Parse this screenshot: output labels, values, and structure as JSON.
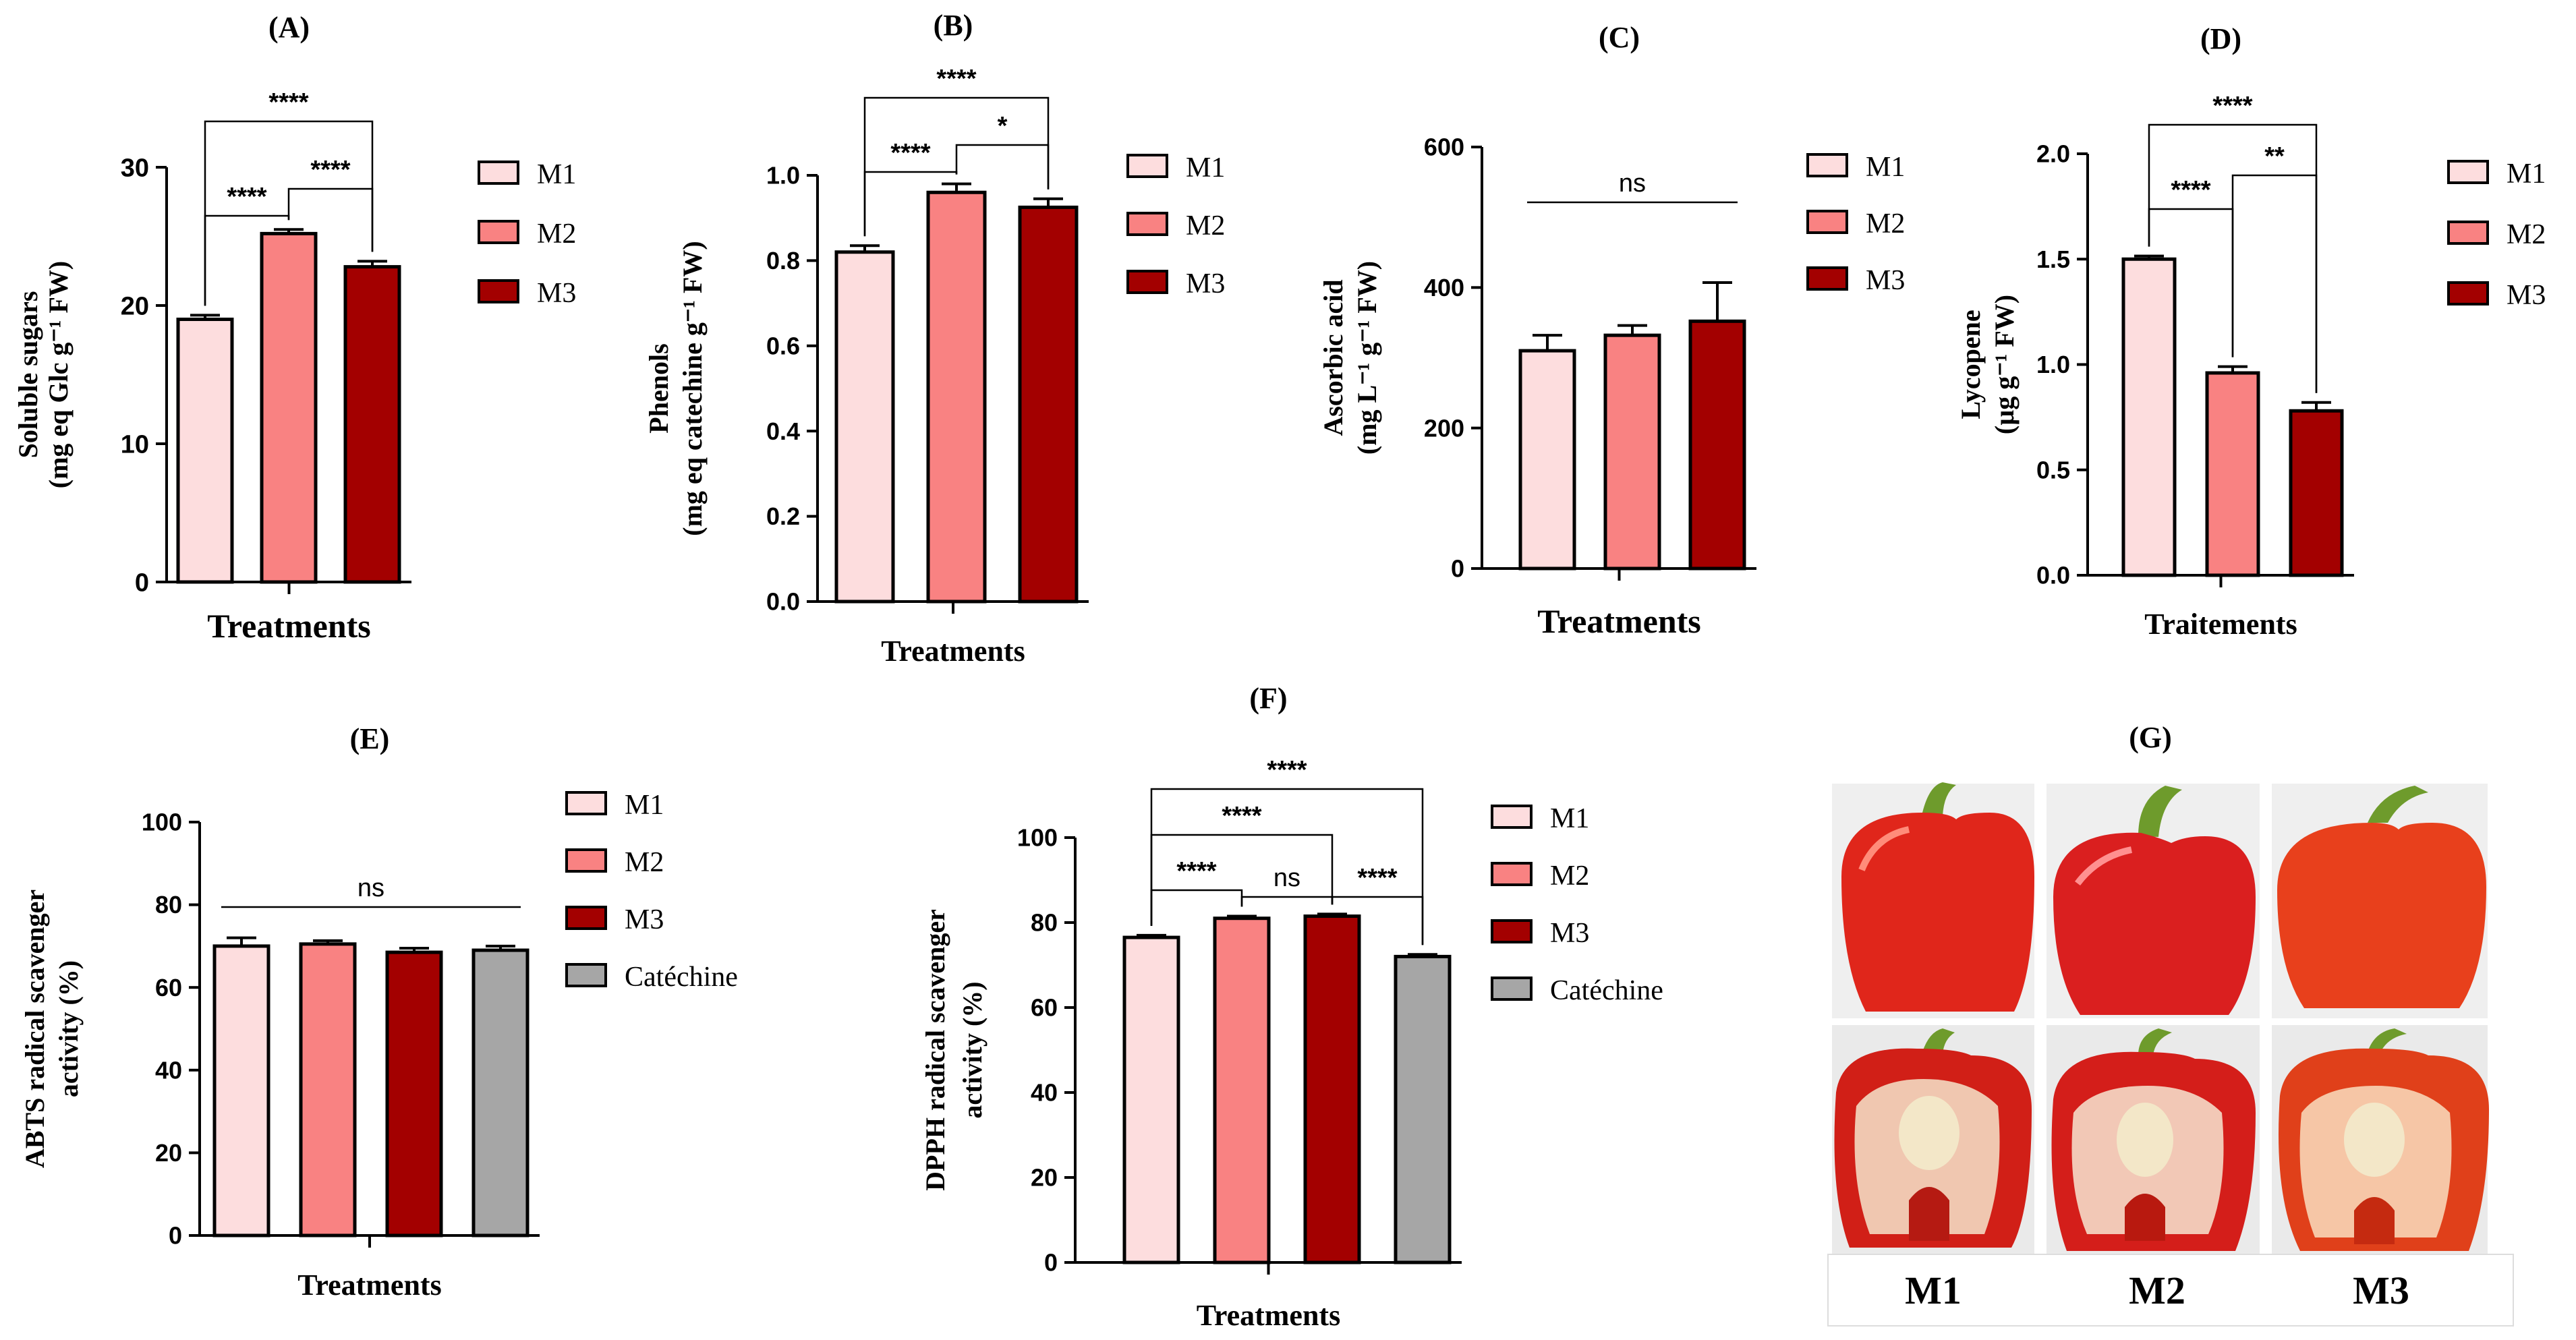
{
  "chart_data": [
    {
      "id": "A",
      "panel_label": "(A)",
      "type": "bar",
      "ylabel_lines": [
        "Soluble sugars",
        "(mg eq Glc g⁻¹ FW)"
      ],
      "xlabel": "Treatments",
      "ylim": [
        0,
        30
      ],
      "yticks": [
        "0",
        "10",
        "20",
        "30"
      ],
      "categories": [
        "M1",
        "M2",
        "M3"
      ],
      "values": [
        19,
        25.2,
        22.8
      ],
      "errors": [
        0.3,
        0.3,
        0.4
      ],
      "colors": [
        "#FDDDDE",
        "#F98282",
        "#A30000"
      ],
      "legend": [
        "M1",
        "M2",
        "M3"
      ],
      "significance": [
        {
          "from": 0,
          "to": 1,
          "label": "****"
        },
        {
          "from": 1,
          "to": 2,
          "label": "****"
        },
        {
          "from": 0,
          "to": 2,
          "label": "****"
        }
      ]
    },
    {
      "id": "B",
      "panel_label": "(B)",
      "type": "bar",
      "ylabel_lines": [
        "Phenols",
        "(mg eq catechine g⁻¹ FW)"
      ],
      "xlabel": "Treatments",
      "ylim": [
        0,
        1.0
      ],
      "yticks": [
        "0.0",
        "0.2",
        "0.4",
        "0.6",
        "0.8",
        "1.0"
      ],
      "categories": [
        "M1",
        "M2",
        "M3"
      ],
      "values": [
        0.82,
        0.96,
        0.925
      ],
      "errors": [
        0.015,
        0.02,
        0.02
      ],
      "colors": [
        "#FDDDDE",
        "#F98282",
        "#A30000"
      ],
      "legend": [
        "M1",
        "M2",
        "M3"
      ],
      "significance": [
        {
          "from": 0,
          "to": 1,
          "label": "****"
        },
        {
          "from": 1,
          "to": 2,
          "label": "*"
        },
        {
          "from": 0,
          "to": 2,
          "label": "****"
        }
      ]
    },
    {
      "id": "C",
      "panel_label": "(C)",
      "type": "bar",
      "ylabel_lines": [
        "Ascorbic acid",
        "(mg L⁻¹ g⁻¹ FW)"
      ],
      "xlabel": "Treatments",
      "ylim": [
        0,
        600
      ],
      "yticks": [
        "0",
        "200",
        "400",
        "600"
      ],
      "categories": [
        "M1",
        "M2",
        "M3"
      ],
      "values": [
        310,
        332,
        352
      ],
      "errors": [
        22,
        14,
        55
      ],
      "colors": [
        "#FDDDDE",
        "#F98282",
        "#A30000"
      ],
      "legend": [
        "M1",
        "M2",
        "M3"
      ],
      "significance": [
        {
          "from": 0,
          "to": 2,
          "label": "ns",
          "line": true
        }
      ]
    },
    {
      "id": "D",
      "panel_label": "(D)",
      "type": "bar",
      "ylabel_lines": [
        "Lycopene",
        "(µg g⁻¹ FW)"
      ],
      "xlabel": "Traitements",
      "ylim": [
        0,
        2.0
      ],
      "yticks": [
        "0.0",
        "0.5",
        "1.0",
        "1.5",
        "2.0"
      ],
      "categories": [
        "M1",
        "M2",
        "M3"
      ],
      "values": [
        1.5,
        0.96,
        0.78
      ],
      "errors": [
        0.015,
        0.03,
        0.04
      ],
      "colors": [
        "#FDDDDE",
        "#F98282",
        "#A30000"
      ],
      "legend": [
        "M1",
        "M2",
        "M3"
      ],
      "significance": [
        {
          "from": 0,
          "to": 1,
          "label": "****"
        },
        {
          "from": 1,
          "to": 2,
          "label": "**"
        },
        {
          "from": 0,
          "to": 2,
          "label": "****"
        }
      ]
    },
    {
      "id": "E",
      "panel_label": "(E)",
      "type": "bar",
      "ylabel_lines": [
        "ABTS radical scavenger",
        "activity (%)"
      ],
      "xlabel": "Treatments",
      "ylim": [
        0,
        100
      ],
      "yticks": [
        "0",
        "20",
        "40",
        "60",
        "80",
        "100"
      ],
      "categories": [
        "M1",
        "M2",
        "M3",
        "Catéchine"
      ],
      "values": [
        70,
        70.5,
        68.5,
        69
      ],
      "errors": [
        2,
        0.8,
        1,
        1
      ],
      "colors": [
        "#FDDDDE",
        "#F98282",
        "#A30000",
        "#A6A6A6"
      ],
      "legend": [
        "M1",
        "M2",
        "M3",
        "Catéchine"
      ],
      "significance": [
        {
          "from": 0,
          "to": 3,
          "label": "ns",
          "line": true
        }
      ]
    },
    {
      "id": "F",
      "panel_label": "(F)",
      "type": "bar",
      "ylabel_lines": [
        "DPPH radical scavenger",
        "activity (%)"
      ],
      "xlabel": "Treatments",
      "ylim": [
        0,
        100
      ],
      "yticks": [
        "0",
        "20",
        "40",
        "60",
        "80",
        "100"
      ],
      "categories": [
        "M1",
        "M2",
        "M3",
        "Catéchine"
      ],
      "values": [
        76.5,
        81,
        81.5,
        72
      ],
      "errors": [
        0.5,
        0.5,
        0.5,
        0.5
      ],
      "colors": [
        "#FDDDDE",
        "#F98282",
        "#A30000",
        "#A6A6A6"
      ],
      "legend": [
        "M1",
        "M2",
        "M3",
        "Catéchine"
      ],
      "significance": [
        {
          "from": 0,
          "to": 1,
          "label": "****"
        },
        {
          "from": 1,
          "to": 2,
          "label": "ns"
        },
        {
          "from": 2,
          "to": 3,
          "label": "****"
        },
        {
          "from": 0,
          "to": 2,
          "label": "****"
        },
        {
          "from": 0,
          "to": 3,
          "label": "****"
        }
      ]
    }
  ],
  "photo_panel": {
    "panel_label": "(G)",
    "labels": [
      "M1",
      "M2",
      "M3"
    ]
  }
}
